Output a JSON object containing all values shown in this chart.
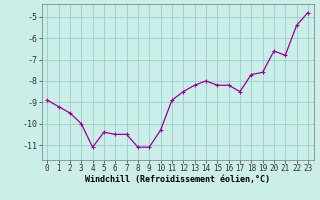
{
  "x": [
    0,
    1,
    2,
    3,
    4,
    5,
    6,
    7,
    8,
    9,
    10,
    11,
    12,
    13,
    14,
    15,
    16,
    17,
    18,
    19,
    20,
    21,
    22,
    23
  ],
  "y": [
    -8.9,
    -9.2,
    -9.5,
    -10.0,
    -11.1,
    -10.4,
    -10.5,
    -10.5,
    -11.1,
    -11.1,
    -10.3,
    -8.9,
    -8.5,
    -8.2,
    -8.0,
    -8.2,
    -8.2,
    -8.5,
    -7.7,
    -7.6,
    -6.6,
    -6.8,
    -5.4,
    -4.8
  ],
  "line_color": "#990099",
  "marker": "+",
  "marker_color": "#990099",
  "bg_color": "#cceee8",
  "grid_color": "#99cccc",
  "xlabel": "Windchill (Refroidissement éolien,°C)",
  "ylabel": "",
  "xlim": [
    -0.5,
    23.5
  ],
  "ylim": [
    -11.7,
    -4.4
  ],
  "yticks": [
    -11,
    -10,
    -9,
    -8,
    -7,
    -6,
    -5
  ],
  "xticks": [
    0,
    1,
    2,
    3,
    4,
    5,
    6,
    7,
    8,
    9,
    10,
    11,
    12,
    13,
    14,
    15,
    16,
    17,
    18,
    19,
    20,
    21,
    22,
    23
  ],
  "xtick_labels": [
    "0",
    "1",
    "2",
    "3",
    "4",
    "5",
    "6",
    "7",
    "8",
    "9",
    "10",
    "11",
    "12",
    "13",
    "14",
    "15",
    "16",
    "17",
    "18",
    "19",
    "20",
    "21",
    "22",
    "23"
  ],
  "linewidth": 0.9,
  "markersize": 3.5,
  "tick_fontsize": 5.5,
  "xlabel_fontsize": 6.0
}
